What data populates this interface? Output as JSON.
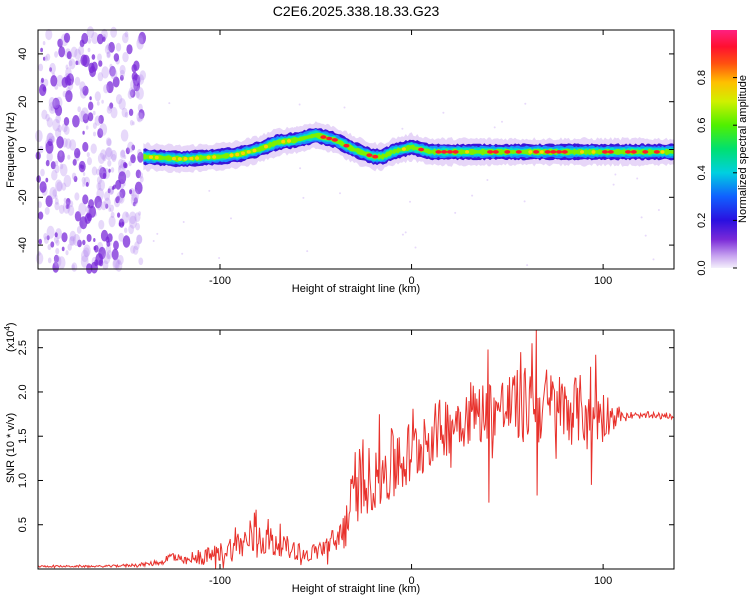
{
  "title": "C2E6.2025.338.18.33.G23",
  "colors": {
    "snr_line": "#e8312b",
    "scatter_low": "#b991f0",
    "scatter_high": "#7a2ad8"
  },
  "chart_data": [
    {
      "type": "heatmap",
      "name": "spectrogram",
      "xlabel": "Height of straight line (km)",
      "ylabel": "Frequency (Hz)",
      "xlim": [
        -195,
        137
      ],
      "ylim": [
        -50,
        50
      ],
      "x_ticks": [
        -100,
        0,
        100
      ],
      "x_tick_labels": [
        "-100",
        "0",
        "100"
      ],
      "y_ticks": [
        -40,
        -20,
        0,
        20,
        40
      ],
      "y_tick_labels": [
        "-40",
        "-20",
        "0",
        "20",
        "40"
      ],
      "noise_region_x": [
        -195,
        -140
      ],
      "ridge": {
        "x": [
          -140,
          -120,
          -100,
          -90,
          -80,
          -70,
          -60,
          -50,
          -40,
          -30,
          -20,
          -15,
          -10,
          0,
          10,
          20,
          40,
          60,
          80,
          100,
          120,
          137
        ],
        "freq": [
          -3,
          -4,
          -3,
          -2,
          0,
          3,
          4,
          6,
          4,
          0,
          -3,
          -3,
          -1,
          1,
          -1,
          -1,
          -1,
          -1,
          -1,
          -1,
          -1,
          -1
        ]
      },
      "colorbar": {
        "label": "Normalized spectral amplitude",
        "range": [
          0,
          1
        ],
        "ticks": [
          0.0,
          0.2,
          0.4,
          0.6,
          0.8
        ],
        "tick_labels": [
          "0.0",
          "0.2",
          "0.4",
          "0.6",
          "0.8"
        ]
      }
    },
    {
      "type": "line",
      "name": "snr",
      "xlabel": "Height of straight line (km)",
      "ylabel": "SNR (10 * v/v)",
      "exponent_label": "(x10",
      "exponent_power": "4",
      "exponent_close": ")",
      "xlim": [
        -195,
        137
      ],
      "ylim": [
        0,
        2.7
      ],
      "x_ticks": [
        -100,
        0,
        100
      ],
      "x_tick_labels": [
        "-100",
        "0",
        "100"
      ],
      "y_ticks": [
        0.5,
        1.0,
        1.5,
        2.0,
        2.5
      ],
      "y_tick_labels": [
        "0.5",
        "1.0",
        "1.5",
        "2.0",
        "2.5"
      ],
      "envelope": {
        "x": [
          -195,
          -160,
          -140,
          -130,
          -125,
          -120,
          -110,
          -100,
          -90,
          -80,
          -70,
          -60,
          -55,
          -50,
          -40,
          -35,
          -30,
          -20,
          -10,
          0,
          10,
          20,
          30,
          40,
          50,
          60,
          70,
          80,
          90,
          100,
          110,
          120,
          137
        ],
        "mean": [
          0.03,
          0.03,
          0.05,
          0.08,
          0.15,
          0.08,
          0.12,
          0.18,
          0.28,
          0.35,
          0.3,
          0.2,
          0.15,
          0.2,
          0.3,
          0.45,
          0.85,
          1.05,
          1.15,
          1.3,
          1.5,
          1.65,
          1.75,
          1.8,
          1.82,
          1.85,
          1.85,
          1.8,
          1.8,
          1.75,
          1.72,
          1.73,
          1.72
        ],
        "noise": [
          0.01,
          0.01,
          0.02,
          0.03,
          0.08,
          0.04,
          0.08,
          0.12,
          0.18,
          0.22,
          0.15,
          0.1,
          0.08,
          0.1,
          0.18,
          0.25,
          0.35,
          0.4,
          0.45,
          0.4,
          0.35,
          0.35,
          0.35,
          0.35,
          0.4,
          0.45,
          0.45,
          0.4,
          0.4,
          0.3,
          0.04,
          0.03,
          0.03
        ]
      },
      "peaks": [
        {
          "x": -81,
          "y": 0.67
        },
        {
          "x": 40,
          "y": 2.48
        },
        {
          "x": 57,
          "y": 2.45
        },
        {
          "x": 63,
          "y": 2.55
        },
        {
          "x": 65,
          "y": 2.72
        },
        {
          "x": 96,
          "y": 2.42
        },
        {
          "x": 40.5,
          "y": 0.75
        },
        {
          "x": 65.5,
          "y": 0.83
        },
        {
          "x": 94,
          "y": 0.95
        }
      ]
    }
  ]
}
